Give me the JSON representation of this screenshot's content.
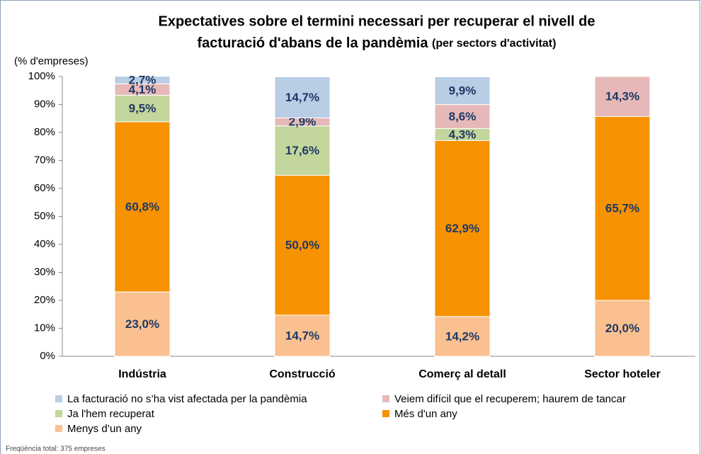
{
  "chart_data": {
    "type": "stacked_bar",
    "title": [
      "Expectatives sobre el termini necessari per recuperar el nivell de",
      "facturació d'abans de la pandèmia"
    ],
    "subtitle": "(per sectors d'activitat)",
    "y_label": "(% d'empreses)",
    "note": "Freqüència total: 375 empreses",
    "categories": [
      "Indústria",
      "Construcció",
      "Comerç al detall",
      "Sector hoteler"
    ],
    "ylim": [
      0,
      100
    ],
    "yticks": [
      {
        "value": 0,
        "label": "0%"
      },
      {
        "value": 10,
        "label": "10%"
      },
      {
        "value": 20,
        "label": "20%"
      },
      {
        "value": 30,
        "label": "30%"
      },
      {
        "value": 40,
        "label": "40%"
      },
      {
        "value": 50,
        "label": "50%"
      },
      {
        "value": 60,
        "label": "60%"
      },
      {
        "value": 70,
        "label": "70%"
      },
      {
        "value": 80,
        "label": "80%"
      },
      {
        "value": 90,
        "label": "90%"
      },
      {
        "value": 100,
        "label": "100%"
      }
    ],
    "series": [
      {
        "name": "Menys d’un any",
        "color": "#fac090",
        "values": [
          23.0,
          14.7,
          14.2,
          20.0
        ],
        "value_labels": [
          "23,0%",
          "14,7%",
          "14,2%",
          "20,0%"
        ]
      },
      {
        "name": "Més d'un any",
        "color": "#f79200",
        "values": [
          60.8,
          50.0,
          62.9,
          65.7
        ],
        "value_labels": [
          "60,8%",
          "50,0%",
          "62,9%",
          "65,7%"
        ]
      },
      {
        "name": "Ja l'hem recuperat",
        "color": "#c3d69b",
        "values": [
          9.5,
          17.6,
          4.3,
          null
        ],
        "value_labels": [
          "9,5%",
          "17,6%",
          "4,3%",
          null
        ]
      },
      {
        "name": "Veiem difícil que el recuperem; haurem de tancar",
        "color": "#e6b9b8",
        "values": [
          4.1,
          2.9,
          8.6,
          14.3
        ],
        "value_labels": [
          "4,1%",
          "2,9%",
          "8,6%",
          "14,3%"
        ]
      },
      {
        "name": "La facturació no s’ha vist afectada per la pandèmia",
        "color": "#b9cde5",
        "values": [
          2.7,
          14.7,
          9.9,
          null
        ],
        "value_labels": [
          "2,7%",
          "14,7%",
          "9,9%",
          null
        ]
      }
    ]
  }
}
